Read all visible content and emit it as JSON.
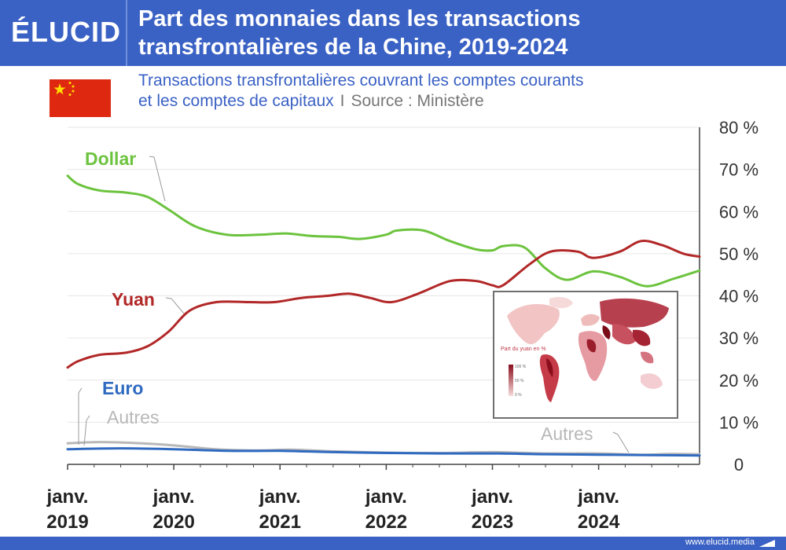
{
  "header": {
    "logo": "ÉLUCID",
    "title_line1": "Part des monnaies dans les transactions",
    "title_line2": "transfrontalières de la Chine, 2019-2024"
  },
  "subtitle": {
    "line1": "Transactions transfrontalières couvrant les comptes courants",
    "line2": "et les comptes de capitaux",
    "separator": "I",
    "source": "Source : Ministère"
  },
  "inset_map": {
    "legend_title": "Part du yuan en %",
    "legend_labels": [
      "100 %",
      "50 %",
      "0 %"
    ]
  },
  "footer": {
    "url": "www.elucid.media"
  },
  "colors": {
    "header": "#3a61c4",
    "dollar": "#6cc33e",
    "yuan": "#b22727",
    "euro": "#2f6ac0",
    "autres": "#b8b8b8"
  },
  "chart_data": {
    "type": "line",
    "title": "Part des monnaies dans les transactions transfrontalières de la Chine, 2019-2024",
    "x_labels": [
      "janv. 2019",
      "janv. 2020",
      "janv. 2021",
      "janv. 2022",
      "janv. 2023",
      "janv. 2024"
    ],
    "x_range": [
      2019.0,
      2024.95
    ],
    "ylim": [
      0,
      80
    ],
    "y_ticks": [
      "80 %",
      "70 %",
      "60 %",
      "50 %",
      "40 %",
      "30 %",
      "20 %",
      "10 %",
      "0"
    ],
    "y_axis_position": "right",
    "grid": true,
    "series": [
      {
        "name": "Dollar",
        "color": "#6cc33e",
        "x": [
          2019.0,
          2019.1,
          2019.3,
          2019.55,
          2019.75,
          2019.95,
          2020.2,
          2020.5,
          2020.8,
          2021.05,
          2021.3,
          2021.55,
          2021.75,
          2022.0,
          2022.1,
          2022.35,
          2022.6,
          2022.85,
          2023.0,
          2023.1,
          2023.3,
          2023.5,
          2023.7,
          2023.95,
          2024.2,
          2024.45,
          2024.7,
          2024.95
        ],
        "values": [
          68.5,
          66.5,
          65,
          64.5,
          63.5,
          60.5,
          56.5,
          54.5,
          54.5,
          54.8,
          54.2,
          54,
          53.5,
          54.5,
          55.5,
          55.5,
          53,
          51,
          50.8,
          51.8,
          51.5,
          46.5,
          43.8,
          45.8,
          44.5,
          42.3,
          44,
          46
        ]
      },
      {
        "name": "Yuan",
        "color": "#b22727",
        "x": [
          2019.0,
          2019.1,
          2019.3,
          2019.55,
          2019.75,
          2019.95,
          2020.15,
          2020.4,
          2020.7,
          2020.95,
          2021.2,
          2021.45,
          2021.65,
          2021.85,
          2022.05,
          2022.3,
          2022.6,
          2022.85,
          2023.0,
          2023.1,
          2023.35,
          2023.55,
          2023.8,
          2023.95,
          2024.2,
          2024.4,
          2024.6,
          2024.8,
          2024.95
        ],
        "values": [
          23,
          24.5,
          26,
          26.5,
          28,
          31.5,
          36.5,
          38.5,
          38.5,
          38.5,
          39.5,
          40,
          40.5,
          39.5,
          38.5,
          40.5,
          43.5,
          43.5,
          42.5,
          42.5,
          47.5,
          50.5,
          50.5,
          49,
          50.5,
          53,
          52,
          50,
          49.3
        ]
      },
      {
        "name": "Euro",
        "color": "#2f6ac0",
        "x": [
          2019.0,
          2019.5,
          2020.0,
          2020.5,
          2021.0,
          2021.5,
          2022.0,
          2022.5,
          2023.0,
          2023.5,
          2024.0,
          2024.5,
          2024.95
        ],
        "values": [
          3.6,
          3.8,
          3.6,
          3.2,
          3.2,
          2.9,
          2.7,
          2.6,
          2.6,
          2.4,
          2.3,
          2.2,
          2.1
        ]
      },
      {
        "name": "Autres",
        "color": "#b8b8b8",
        "x": [
          2019.0,
          2019.3,
          2019.7,
          2020.0,
          2020.4,
          2020.8,
          2021.1,
          2021.5,
          2022.0,
          2022.5,
          2023.0,
          2023.5,
          2024.0,
          2024.4,
          2024.7,
          2024.95
        ],
        "values": [
          5.0,
          5.3,
          5.0,
          4.5,
          3.6,
          3.3,
          3.5,
          3.1,
          2.8,
          2.7,
          2.9,
          2.6,
          2.6,
          2.3,
          2.5,
          2.4
        ]
      }
    ],
    "annotations": [
      {
        "text": "Dollar",
        "series": "Dollar"
      },
      {
        "text": "Yuan",
        "series": "Yuan"
      },
      {
        "text": "Euro",
        "series": "Euro"
      },
      {
        "text": "Autres",
        "series": "Autres"
      },
      {
        "text": "Autres",
        "series": "Autres"
      }
    ]
  }
}
